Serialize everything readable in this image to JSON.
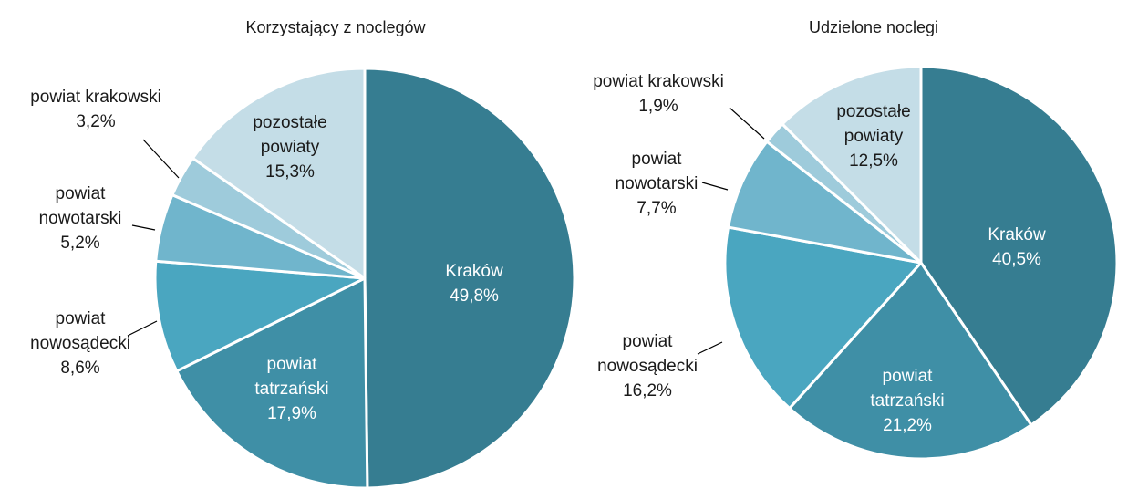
{
  "chart_data": [
    {
      "type": "pie",
      "title": "Korzystający z noclegów",
      "categories": [
        "Kraków",
        "powiat\ntatrzański",
        "powiat\nnowosądecki",
        "powiat\nnowotarski",
        "powiat krakowski",
        "pozostałe\npowiaty"
      ],
      "values": [
        49.8,
        17.9,
        8.6,
        5.2,
        3.2,
        15.3
      ],
      "value_labels": [
        "49,8%",
        "17,9%",
        "8,6%",
        "5,2%",
        "3,2%",
        "15,3%"
      ],
      "colors": [
        "#367d91",
        "#3f8fa6",
        "#4aa6c0",
        "#70b5cc",
        "#9ecbdb",
        "#c4dde7"
      ]
    },
    {
      "type": "pie",
      "title": "Udzielone noclegi",
      "categories": [
        "Kraków",
        "powiat\ntatrzański",
        "powiat\nnowosądecki",
        "powiat\nnowotarski",
        "powiat krakowski",
        "pozostałe\npowiaty"
      ],
      "values": [
        40.5,
        21.2,
        16.2,
        7.7,
        1.9,
        12.5
      ],
      "value_labels": [
        "40,5%",
        "21,2%",
        "16,2%",
        "7,7%",
        "1,9%",
        "12,5%"
      ],
      "colors": [
        "#367d91",
        "#3f8fa6",
        "#4aa6c0",
        "#70b5cc",
        "#9ecbdb",
        "#c4dde7"
      ]
    }
  ]
}
